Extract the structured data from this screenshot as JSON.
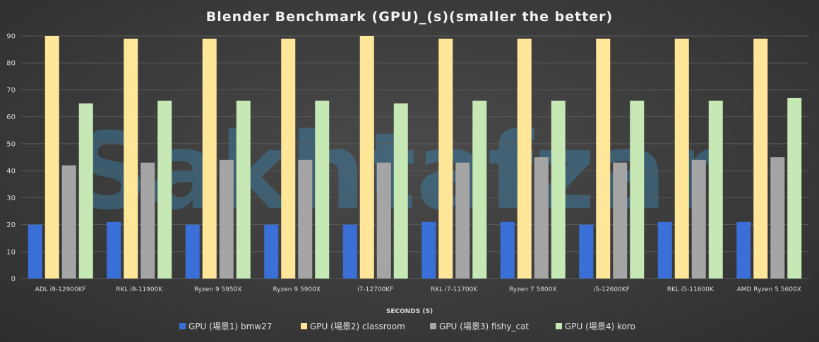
{
  "chart_data": {
    "type": "bar",
    "title": "Blender Benchmark (GPU)_(s)(smaller the better)",
    "xlabel": "SECONDS (S)",
    "ylabel": "",
    "ylim": [
      0,
      90
    ],
    "yticks": [
      0,
      10,
      20,
      30,
      40,
      50,
      60,
      70,
      80,
      90
    ],
    "grid": true,
    "legend_position": "bottom",
    "categories": [
      "ADL i9-12900KF",
      "RKL i9-11900K",
      "Ryzen 9 5950X",
      "Ryzen 9 5900X",
      "i7-12700KF",
      "RKL i7-11700K",
      "Ryzen 7 5800X",
      "i5-12600KF",
      "RKL i5-11600K",
      "AMD Ryzen 5 5600X"
    ],
    "series": [
      {
        "name": "GPU (場景1) bmw27",
        "color": "#3a6fd8",
        "values": [
          20,
          21,
          20,
          20,
          20,
          21,
          21,
          20,
          21,
          21
        ]
      },
      {
        "name": "GPU (場景2) classroom",
        "color": "#ffe699",
        "values": [
          90,
          89,
          89,
          89,
          90,
          89,
          89,
          89,
          89,
          89
        ]
      },
      {
        "name": "GPU (場景3) fishy_cat",
        "color": "#a5a5a5",
        "values": [
          42,
          43,
          44,
          44,
          43,
          43,
          45,
          43,
          44,
          45
        ]
      },
      {
        "name": "GPU (場景4) koro",
        "color": "#c6e8b4",
        "values": [
          65,
          66,
          66,
          66,
          65,
          66,
          66,
          66,
          66,
          67
        ]
      }
    ]
  },
  "watermark": "Sakhtafzar",
  "colors": {
    "grid": "#5a5a5a",
    "background": "#3b3b3b"
  }
}
